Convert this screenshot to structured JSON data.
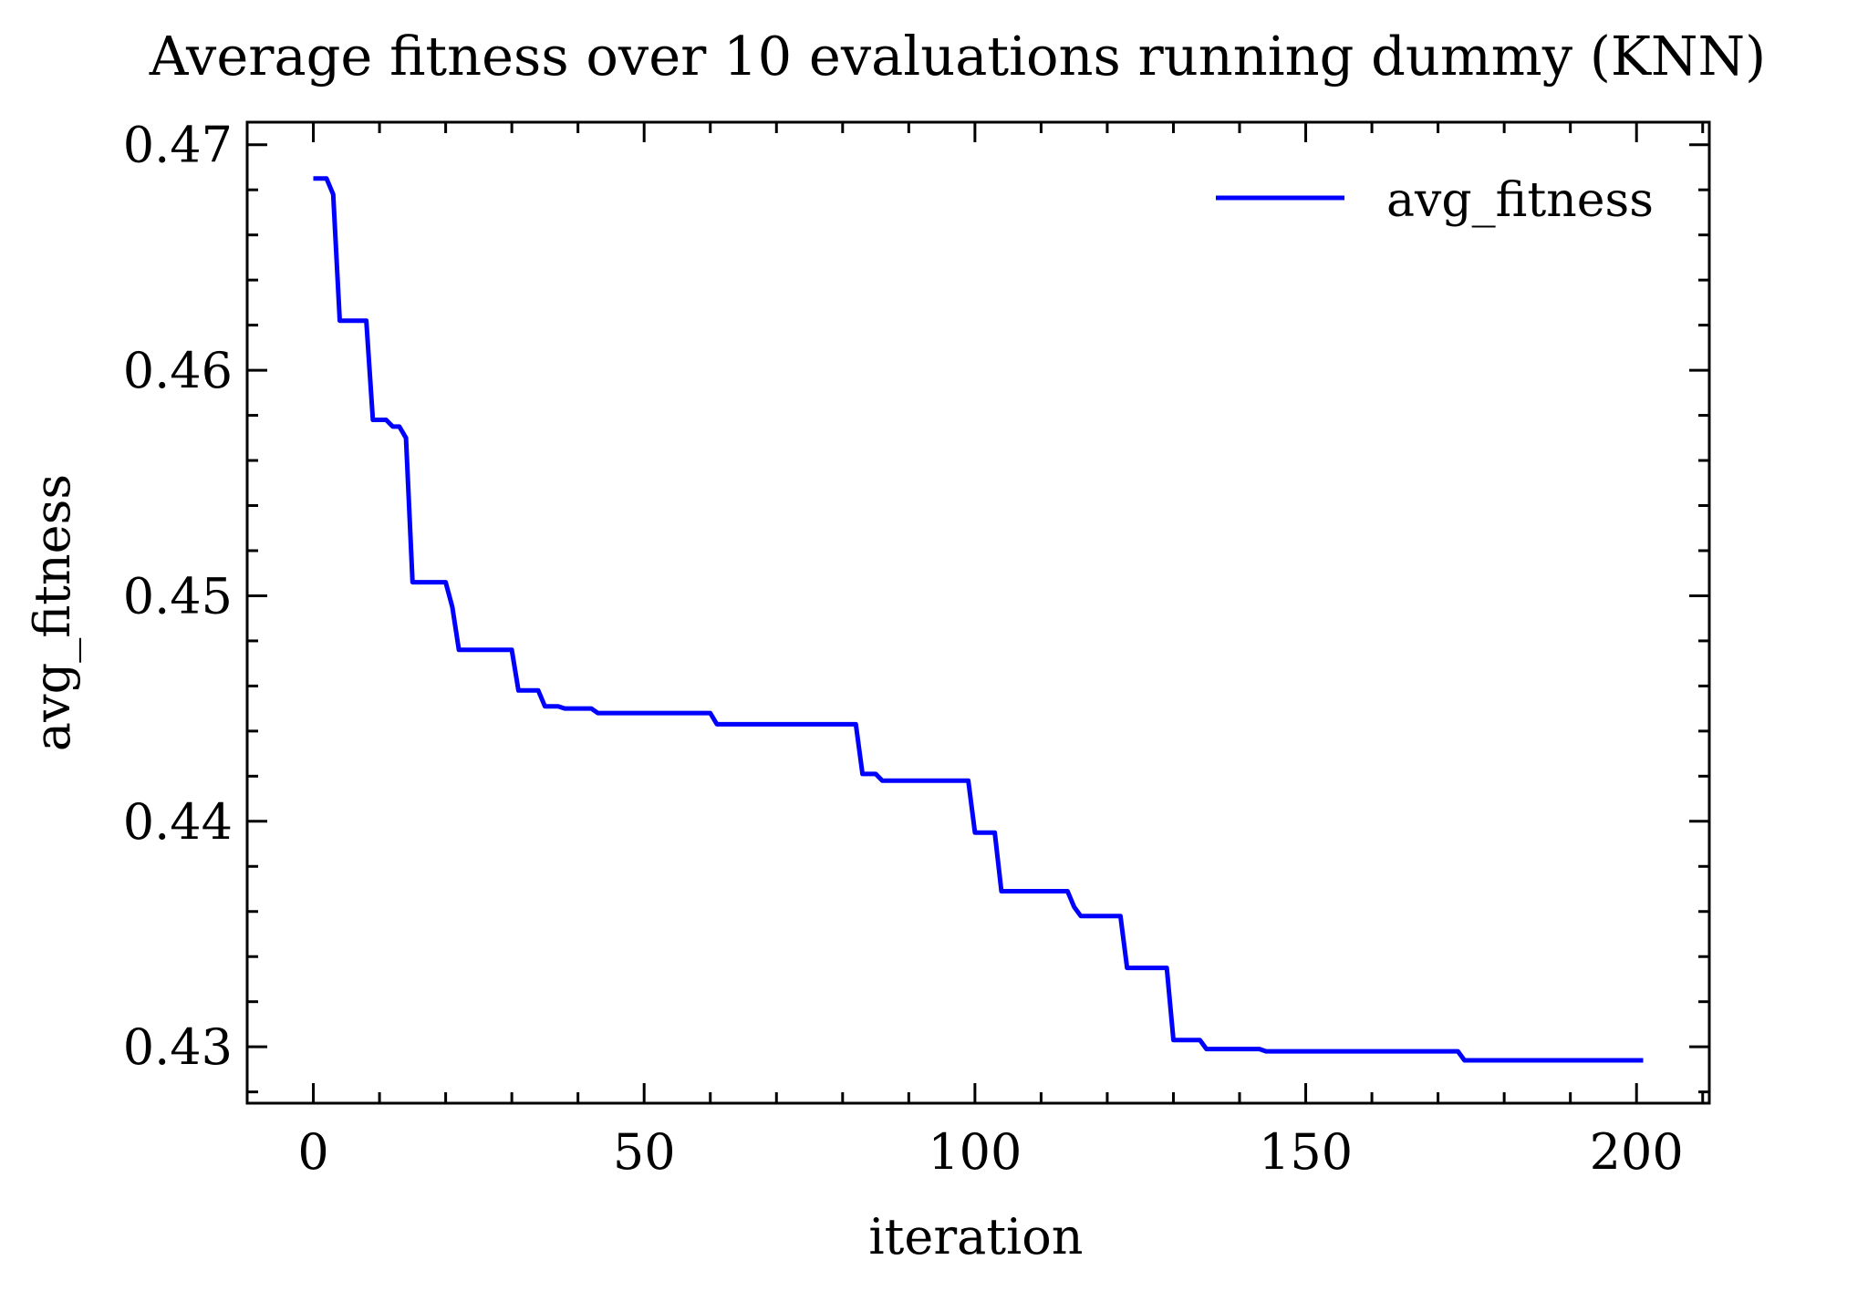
{
  "chart_data": {
    "type": "line",
    "title": "Average fitness over 10 evaluations running dummy (KNN)",
    "xlabel": "iteration",
    "ylabel": "avg_fitness",
    "xlim": [
      -10,
      211
    ],
    "ylim": [
      0.4275,
      0.471
    ],
    "xticks": [
      0,
      50,
      100,
      150,
      200
    ],
    "xtick_labels": [
      "0",
      "50",
      "100",
      "150",
      "200"
    ],
    "yticks": [
      0.43,
      0.44,
      0.45,
      0.46,
      0.47
    ],
    "ytick_labels": [
      "0.43",
      "0.44",
      "0.45",
      "0.46",
      "0.47"
    ],
    "grid": false,
    "legend": {
      "position": "top-right",
      "entries": [
        "avg_fitness"
      ]
    },
    "series": [
      {
        "name": "avg_fitness",
        "color": "#0000ff",
        "x": [
          0,
          2,
          3,
          4,
          8,
          9,
          11,
          12,
          13,
          14,
          15,
          20,
          21,
          22,
          30,
          31,
          34,
          35,
          37,
          38,
          42,
          43,
          60,
          61,
          82,
          83,
          85,
          86,
          99,
          100,
          103,
          104,
          114,
          115,
          116,
          122,
          123,
          129,
          130,
          134,
          135,
          143,
          144,
          173,
          174,
          201
        ],
        "y": [
          0.4685,
          0.4685,
          0.4678,
          0.4622,
          0.4622,
          0.4578,
          0.4578,
          0.4575,
          0.4575,
          0.457,
          0.4506,
          0.4506,
          0.4495,
          0.4476,
          0.4476,
          0.4458,
          0.4458,
          0.4451,
          0.4451,
          0.445,
          0.445,
          0.4448,
          0.4448,
          0.4443,
          0.4443,
          0.4421,
          0.4421,
          0.4418,
          0.4418,
          0.4395,
          0.4395,
          0.4369,
          0.4369,
          0.4362,
          0.4358,
          0.4358,
          0.4335,
          0.4335,
          0.4303,
          0.4303,
          0.4299,
          0.4299,
          0.4298,
          0.4298,
          0.4294,
          0.4294
        ]
      }
    ]
  }
}
